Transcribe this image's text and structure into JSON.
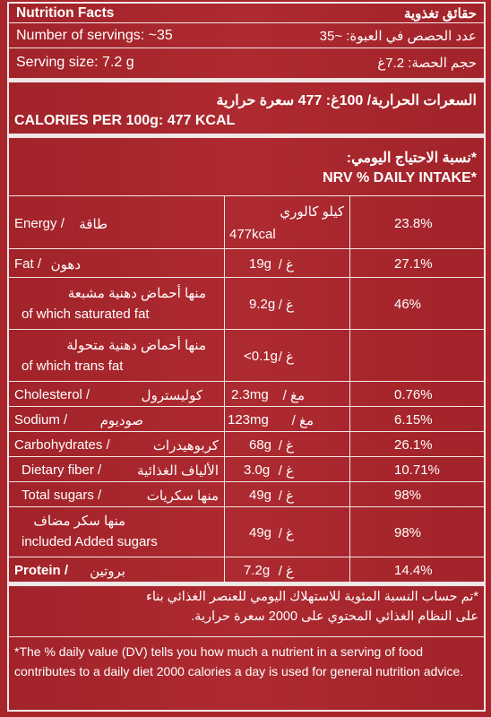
{
  "header": {
    "title_en": "Nutrition Facts",
    "title_ar": "حقائق تغذوية"
  },
  "servings": {
    "count_en": "Number of servings: ~35",
    "count_ar": "عدد الحصص في العبوة: ~35",
    "size_en": "Serving size: 7.2 g",
    "size_ar": "حجم الحصة: 7.2غ"
  },
  "calories": {
    "ar": "السعرات الحرارية/ 100غ: 477 سعرة حرارية",
    "en": "CALORIES PER 100g: 477 KCAL"
  },
  "nrv": {
    "ar": "*نسبة الاحتياج اليومي:",
    "en": "*NRV % DAILY INTAKE"
  },
  "rows": [
    {
      "en": "Energy /",
      "ar": "طاقة",
      "amount": "477kcal",
      "unit": "كيلو كالوري",
      "pct": "23.8%"
    },
    {
      "en": "Fat /",
      "ar": "دهون",
      "amount": "19g",
      "unit": "غ /",
      "pct": "27.1%"
    },
    {
      "en": "of which saturated fat",
      "ar": "منها أحماض دهنية مشبعة",
      "amount": "9.2g",
      "unit": "غ /",
      "pct": "46%"
    },
    {
      "en": "of which trans fat",
      "ar": "منها أحماض دهنية متحولة",
      "amount": "<0.1g",
      "unit": "غ /",
      "pct": ""
    },
    {
      "en": "Cholesterol /",
      "ar": "كوليسترول",
      "amount": "2.3mg",
      "unit": "مغ /",
      "pct": "0.76%"
    },
    {
      "en": "Sodium /",
      "ar": "صوديوم",
      "amount": "123mg",
      "unit": "مغ /",
      "pct": "6.15%"
    },
    {
      "en": "Carbohydrates /",
      "ar": "كربوهيدرات",
      "amount": "68g",
      "unit": "غ /",
      "pct": "26.1%"
    },
    {
      "en": "Dietary fiber /",
      "ar": "الألياف الغذائية",
      "amount": "3.0g",
      "unit": "غ /",
      "pct": "10.71%"
    },
    {
      "en": "Total sugars /",
      "ar": "منها سكريات",
      "amount": "49g",
      "unit": "غ /",
      "pct": "98%"
    },
    {
      "en": "included Added sugars",
      "ar": "منها سكر مضاف",
      "amount": "49g",
      "unit": "غ /",
      "pct": "98%"
    },
    {
      "en": "Protein /",
      "ar": "بروتين",
      "amount": "7.2g",
      "unit": "غ /",
      "pct": "14.4%"
    }
  ],
  "footnote": {
    "ar_line1": "*تم حساب النسبة المئوية للاستهلاك اليومي للعنصر الغذائي بناء",
    "ar_line2": "على النظام الغذائي المحتوي على 2000 سعرة حرارية.",
    "en": "*The % daily value (DV) tells you how much a nutrient in a serving of food contributes to a daily diet 2000 calories a day is used for general nutrition advice."
  },
  "colors": {
    "background": "#a8262b",
    "text": "#ffffff"
  }
}
